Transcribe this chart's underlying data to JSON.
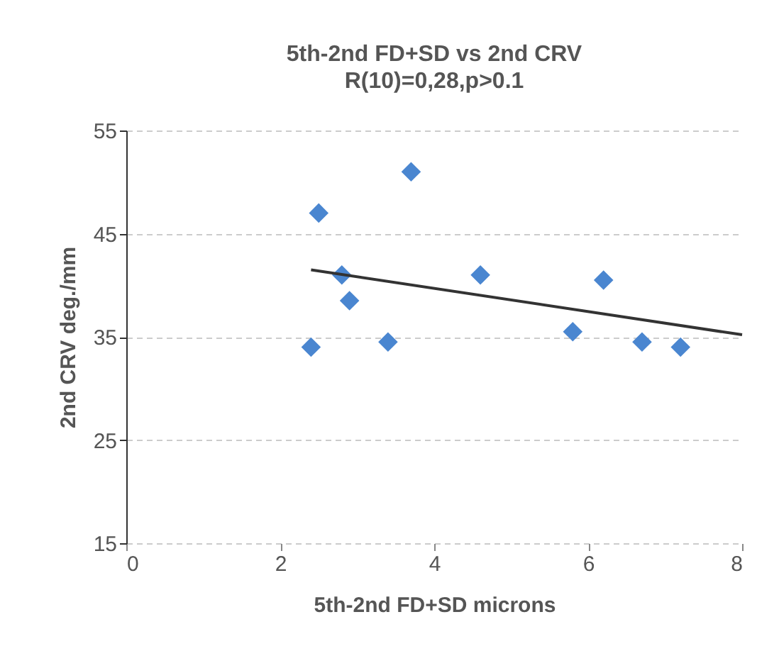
{
  "chart_data": {
    "type": "scatter",
    "title": "5th-2nd FD+SD vs 2nd CRV",
    "subtitle": "R(10)=0,28,p>0.1",
    "xlabel": "5th-2nd FD+SD microns",
    "ylabel": "2nd CRV deg./mm",
    "xlim": [
      0,
      8
    ],
    "xticks": [
      0,
      2,
      4,
      6,
      8
    ],
    "ylim": [
      15,
      55
    ],
    "yticks": [
      15,
      25,
      35,
      45,
      55
    ],
    "grid": "y",
    "series": [
      {
        "marker": "diamond",
        "color": "#4a86d0",
        "x": [
          2.5,
          3.7,
          2.8,
          2.9,
          2.4,
          3.4,
          4.6,
          6.2,
          5.8,
          6.7,
          7.2
        ],
        "values": [
          47,
          51,
          41,
          38.5,
          34,
          34.5,
          41,
          40.5,
          35.5,
          34.5,
          34
        ]
      },
      {
        "type": "line",
        "color": "#333333",
        "x": [
          2.4,
          8
        ],
        "values": [
          41.5,
          35.2
        ]
      }
    ]
  }
}
